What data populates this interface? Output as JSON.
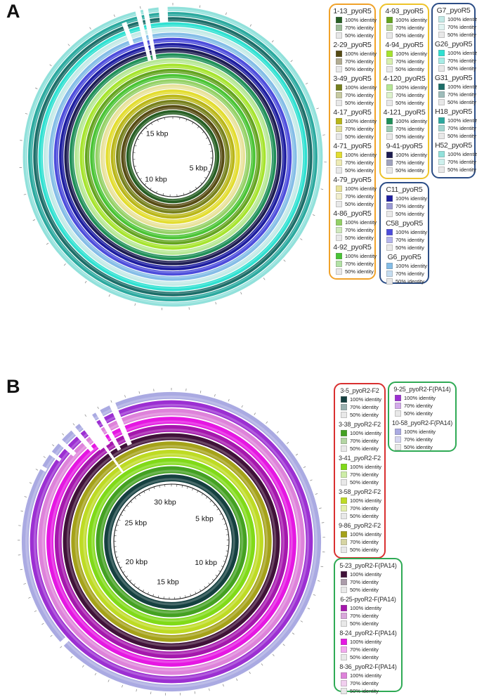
{
  "identity_labels": [
    "100% identity",
    "70% identity",
    "50% identity"
  ],
  "c50": "#e8e8e8",
  "chart_data": {
    "type": "circular-genome-comparison-rings",
    "description": "Two BRIG-style concentric-ring BLAST identity plots (panels A and B); each ring is one phage/plasmid genome colored by legend, rings read inner to outer; gaps are regions of no identity",
    "panels": [
      {
        "label": "A",
        "total_kbp": 17.6,
        "inner_radius": 57,
        "ring_start": 59.5,
        "outer_radius": 214,
        "scale_labels": [
          {
            "text": "5 kbp",
            "angle": 114
          },
          {
            "text": "10 kbp",
            "angle": 217
          },
          {
            "text": "15 kbp",
            "angle": 326
          }
        ],
        "rings": [
          {
            "name": "1-13_pyoR5",
            "c100": "#265e23",
            "c70": "#9cbb97"
          },
          {
            "name": "2-29_pyoR5",
            "c100": "#564b13",
            "c70": "#b3ad92"
          },
          {
            "name": "3-49_pyoR5",
            "c100": "#76801c",
            "c70": "#c7caa0"
          },
          {
            "name": "4-17_pyoR5",
            "c100": "#b9b618",
            "c70": "#e0de9f"
          },
          {
            "name": "4-71_pyoR5",
            "c100": "#e3dd30",
            "c70": "#eeebb4"
          },
          {
            "name": "4-79_pyoR5",
            "c100": "#e8e29a",
            "c70": "#f1eecd"
          },
          {
            "name": "4-86_pyoR5",
            "c100": "#94d165",
            "c70": "#d0e9be"
          },
          {
            "name": "4-92_pyoR5",
            "c100": "#49c434",
            "c70": "#b3e2a5"
          },
          {
            "name": "4-93_pyoR5",
            "c100": "#63a41f",
            "c70": "#bdd79e"
          },
          {
            "name": "4-94_pyoR5",
            "c100": "#a6e42d",
            "c70": "#d9f0af"
          },
          {
            "name": "4-120_pyoR5",
            "c100": "#b5e793",
            "c70": "#ddf2cc"
          },
          {
            "name": "4-121_pyoR5",
            "c100": "#1f9058",
            "c70": "#9cccb3"
          },
          {
            "name": "9-41-pyoR5",
            "c100": "#1c1c50",
            "c70": "#a0a3bd"
          },
          {
            "name": "C11_pyoR5",
            "c100": "#1d1da0",
            "c70": "#9a9ad4"
          },
          {
            "name": "C58_pyoR5",
            "c100": "#4c4cdc",
            "c70": "#b5b5ed"
          },
          {
            "name": "G6_pyoR5",
            "c100": "#84bde7",
            "c70": "#c5ddf1"
          },
          {
            "name": "G7_pyoR5",
            "c100": "#c3eae7",
            "c70": "#e1f4f2"
          },
          {
            "name": "G26_pyoR5",
            "c100": "#2ee1d1",
            "c70": "#a7ece5"
          },
          {
            "name": "G31_pyoR5",
            "c100": "#1b6d68",
            "c70": "#9dbcba"
          },
          {
            "name": "H18_pyoR5",
            "c100": "#2ba99f",
            "c70": "#a5d7d2"
          },
          {
            "name": "H52_pyoR5",
            "c100": "#91e1db",
            "c70": "#cef0ed"
          }
        ],
        "gaps": [
          {
            "a1": 345.5,
            "a2": 347.5,
            "r1": 140,
            "r2": 217
          },
          {
            "a1": 348.5,
            "a2": 350.5,
            "r1": 140,
            "r2": 217
          },
          {
            "a1": 354.5,
            "a2": 358.0,
            "r1": 192,
            "r2": 217
          },
          {
            "a1": 339.0,
            "a2": 341.0,
            "r1": 170,
            "r2": 203
          }
        ],
        "legend_boxes": [
          {
            "border": "#f0a22a",
            "ring_indices": [
              0,
              1,
              2,
              3,
              4,
              5,
              6,
              7
            ]
          },
          {
            "border": "#eec32a",
            "ring_indices": [
              8,
              9,
              10,
              11,
              12
            ]
          },
          {
            "border": "#2b4d86",
            "ring_indices": [
              13,
              14,
              15
            ]
          },
          {
            "border": "#2b4d86",
            "ring_indices": [
              16,
              17,
              18,
              19,
              20
            ]
          }
        ]
      },
      {
        "label": "B",
        "total_kbp": 32.6,
        "inner_radius": 82,
        "ring_start": 85,
        "outer_radius": 214,
        "scale_labels": [
          {
            "text": "5 kbp",
            "angle": 55
          },
          {
            "text": "10 kbp",
            "angle": 121
          },
          {
            "text": "15 kbp",
            "angle": 185
          },
          {
            "text": "20 kbp",
            "angle": 240
          },
          {
            "text": "25 kbp",
            "angle": 298
          },
          {
            "text": "30 kbp",
            "angle": 351
          }
        ],
        "rings": [
          {
            "name": "3-5_pyoR2-F2",
            "c100": "#154040",
            "c70": "#99b1b0"
          },
          {
            "name": "3-38_pyoR2-F2",
            "c100": "#44a122",
            "c70": "#b3d5a3"
          },
          {
            "name": "3-41_pyoR2-F2",
            "c100": "#80da18",
            "c70": "#cdeda7"
          },
          {
            "name": "3-58_pyoR2-F2",
            "c100": "#bedb24",
            "c70": "#e4efac"
          },
          {
            "name": "9-86_pyoR2-F2",
            "c100": "#a5a219",
            "c70": "#d6d4a3"
          },
          {
            "name": "5-23_pyoR2-F(PA14)",
            "c100": "#401239",
            "c70": "#ab9caa"
          },
          {
            "name": "6-25-pyoR2-F(PA14)",
            "c100": "#a517ad",
            "c70": "#d8a7da"
          },
          {
            "name": "8-24_pyoR2-F(PA14)",
            "c100": "#e517e2",
            "c70": "#f3aaef"
          },
          {
            "name": "8-36_pyoR2-F(PA14)",
            "c100": "#de82da",
            "c70": "#f1ceef"
          },
          {
            "name": "9-25_pyoR2-F(PA14)",
            "c100": "#9c2fd2",
            "c70": "#d3aaea"
          },
          {
            "name": "10-58_pyoR2-F(PA14)",
            "c100": "#aaaae2",
            "c70": "#d6d6f1"
          }
        ],
        "gaps": [
          {
            "a1": 335.5,
            "a2": 338.0,
            "r1": 150,
            "r2": 218
          },
          {
            "a1": 329.5,
            "a2": 331.5,
            "r1": 150,
            "r2": 218
          },
          {
            "a1": 322.0,
            "a2": 328.0,
            "r1": 165,
            "r2": 218
          },
          {
            "a1": 324.3,
            "a2": 325.7,
            "r1": 120,
            "r2": 218
          },
          {
            "a1": 318.0,
            "a2": 320.0,
            "r1": 172,
            "r2": 218
          },
          {
            "a1": 311.0,
            "a2": 313.0,
            "r1": 185,
            "r2": 218
          },
          {
            "a1": 305.5,
            "a2": 307.0,
            "r1": 196,
            "r2": 218
          },
          {
            "a1": 299.0,
            "a2": 300.5,
            "r1": 205,
            "r2": 218
          },
          {
            "a1": 226.0,
            "a2": 228.0,
            "r1": 203,
            "r2": 218
          }
        ],
        "legend_boxes": [
          {
            "border": "#d93030",
            "ring_indices": [
              0,
              1,
              2,
              3,
              4
            ]
          },
          {
            "border": "#2faa55",
            "ring_indices": [
              9,
              10
            ]
          },
          {
            "border": "#2faa55",
            "ring_indices": [
              5,
              6,
              7,
              8
            ]
          }
        ]
      }
    ]
  }
}
